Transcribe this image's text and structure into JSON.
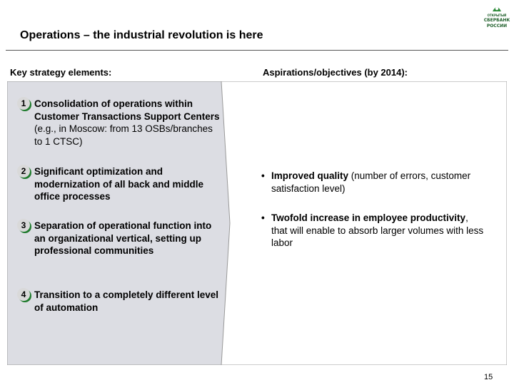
{
  "logo": {
    "line1": "ОТКРЫТЫЙ",
    "line2": "СБЕРБАНК",
    "line3": "РОССИИ",
    "color": "#1f5f2a"
  },
  "title": "Operations – the industrial revolution is here",
  "headers": {
    "left": "Key strategy elements:",
    "right": "Aspirations/objectives (by 2014):"
  },
  "strategy_items": [
    {
      "number": "1",
      "bold": "Consolidation of operations within Customer Transactions Support Centers",
      "normal": " (e.g., in Moscow: from 13 OSBs/branches to 1 CTSC)"
    },
    {
      "number": "2",
      "bold": "Significant optimization and modernization of all back and middle office processes",
      "normal": ""
    },
    {
      "number": "3",
      "bold": "Separation of operational function into an organizational vertical, setting up professional communities",
      "normal": ""
    },
    {
      "number": "4",
      "bold": "Transition to a completely different level of automation",
      "normal": ""
    }
  ],
  "objectives": [
    {
      "bullet": "•",
      "bold": "Improved quality",
      "normal": " (number of errors, customer satisfaction level)"
    },
    {
      "bullet": "•",
      "bold": "Twofold increase in employee productivity",
      "normal": ", that will enable to absorb larger volumes with less labor"
    }
  ],
  "page_number": "15",
  "colors": {
    "panel_left": "#dcdde3",
    "accent_green": "#1e7a2c",
    "number_circle": "#d9d9d9"
  }
}
